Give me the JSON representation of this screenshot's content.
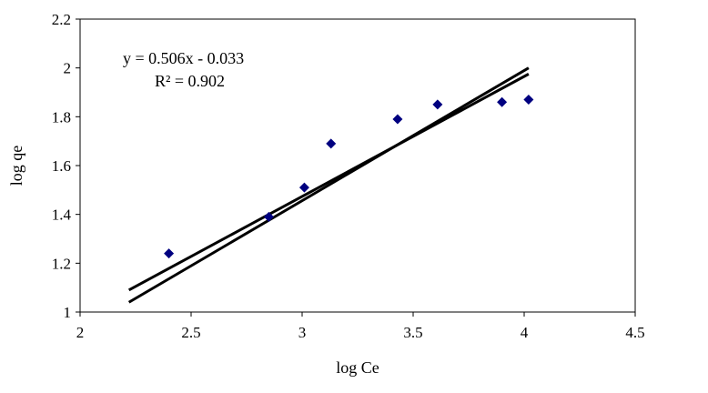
{
  "chart_data": {
    "type": "scatter",
    "xlabel": "log Ce",
    "ylabel": "log qe",
    "xlim": [
      2,
      4.5
    ],
    "ylim": [
      1,
      2.2
    ],
    "x_ticks": [
      "2",
      "2.5",
      "3",
      "3.5",
      "4",
      "4.5"
    ],
    "y_ticks": [
      "1",
      "1.2",
      "1.4",
      "1.6",
      "1.8",
      "2",
      "2.2"
    ],
    "grid": false,
    "legend": "none",
    "marker_color": "#000080",
    "line_color": "#000000",
    "points": [
      {
        "x": 2.4,
        "y": 1.24
      },
      {
        "x": 2.85,
        "y": 1.39
      },
      {
        "x": 3.01,
        "y": 1.51
      },
      {
        "x": 3.13,
        "y": 1.69
      },
      {
        "x": 3.43,
        "y": 1.79
      },
      {
        "x": 3.61,
        "y": 1.85
      },
      {
        "x": 3.9,
        "y": 1.86
      },
      {
        "x": 4.02,
        "y": 1.87
      }
    ],
    "fit_lines": [
      {
        "x": [
          2.22,
          4.02
        ],
        "y": [
          1.09,
          1.975
        ]
      },
      {
        "x": [
          2.22,
          4.02
        ],
        "y": [
          1.04,
          2.0
        ]
      }
    ],
    "annotations": {
      "equation": "y = 0.506x - 0.033",
      "r_squared": "R² = 0.902"
    }
  }
}
